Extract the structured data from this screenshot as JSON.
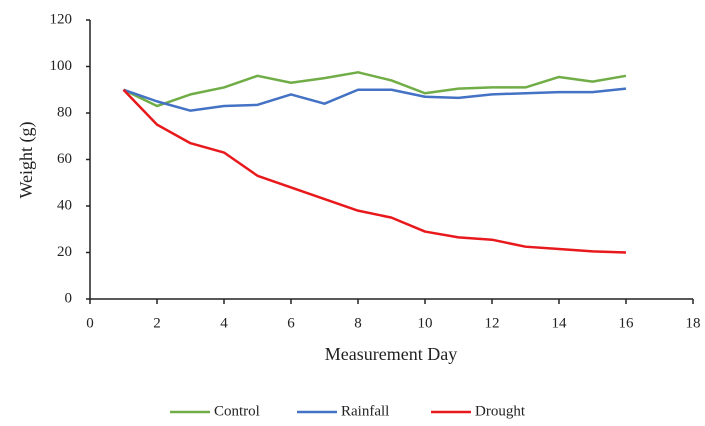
{
  "chart_data": {
    "type": "line",
    "x_label": "Measurement Day",
    "y_label": "Weight (g)",
    "x": [
      1,
      2,
      3,
      4,
      5,
      6,
      7,
      8,
      9,
      10,
      11,
      12,
      13,
      14,
      15,
      16
    ],
    "series": [
      {
        "name": "Control",
        "color": "#70ad47",
        "values": [
          90,
          83,
          88,
          91,
          96,
          93,
          95,
          97.5,
          94,
          88.5,
          90.5,
          91,
          91,
          95.5,
          93.5,
          96
        ]
      },
      {
        "name": "Rainfall",
        "color": "#4472c4",
        "values": [
          90,
          85,
          81,
          83,
          83.5,
          88,
          84,
          90,
          90,
          87,
          86.5,
          88,
          88.5,
          89,
          89,
          90.5
        ]
      },
      {
        "name": "Drought",
        "color": "#e8191c",
        "values": [
          90,
          75,
          67,
          63,
          53,
          48,
          43,
          38,
          35,
          29,
          26.5,
          25.5,
          22.5,
          21.5,
          20.5,
          20
        ]
      }
    ],
    "xlim": [
      0,
      18
    ],
    "xticks": [
      0,
      2,
      4,
      6,
      8,
      10,
      12,
      14,
      16,
      18
    ],
    "ylim": [
      0,
      120
    ],
    "yticks": [
      0,
      20,
      40,
      60,
      80,
      100,
      120
    ],
    "grid": false,
    "legend": "bottom"
  }
}
